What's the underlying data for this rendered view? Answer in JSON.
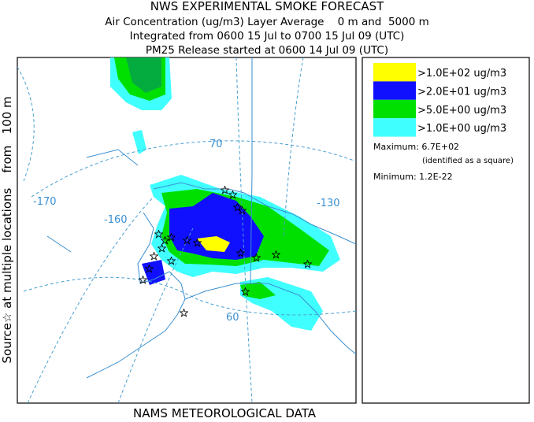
{
  "header": {
    "title": "NWS EXPERIMENTAL SMOKE FORECAST",
    "lines": [
      "Air Concentration (ug/m3) Layer Average    0 m and  5000 m",
      "Integrated from 0600 15 Jul to 0700 15 Jul 09 (UTC)",
      "PM25 Release started at 0600 14 Jul 09 (UTC)"
    ]
  },
  "side_label": "Source☆ at multiple locations    from   100 m",
  "legend": {
    "items": [
      {
        "label": ">1.0E+02 ug/m3",
        "color": "#ffff00"
      },
      {
        "label": ">2.0E+01 ug/m3",
        "color": "#1010ff"
      },
      {
        "label": ">5.0E+00 ug/m3",
        "color": "#00e000"
      },
      {
        "label": ">1.0E+00 ug/m3",
        "color": "#40ffff"
      }
    ]
  },
  "stats": {
    "maximum": "Maximum: 6.7E+02",
    "note": "(identified as a square)",
    "minimum": "Minimum: 1.2E-22"
  },
  "map": {
    "labels": [
      "-170",
      "-160",
      "-130",
      "70",
      "60"
    ]
  },
  "footer": "NAMS METEOROLOGICAL DATA"
}
